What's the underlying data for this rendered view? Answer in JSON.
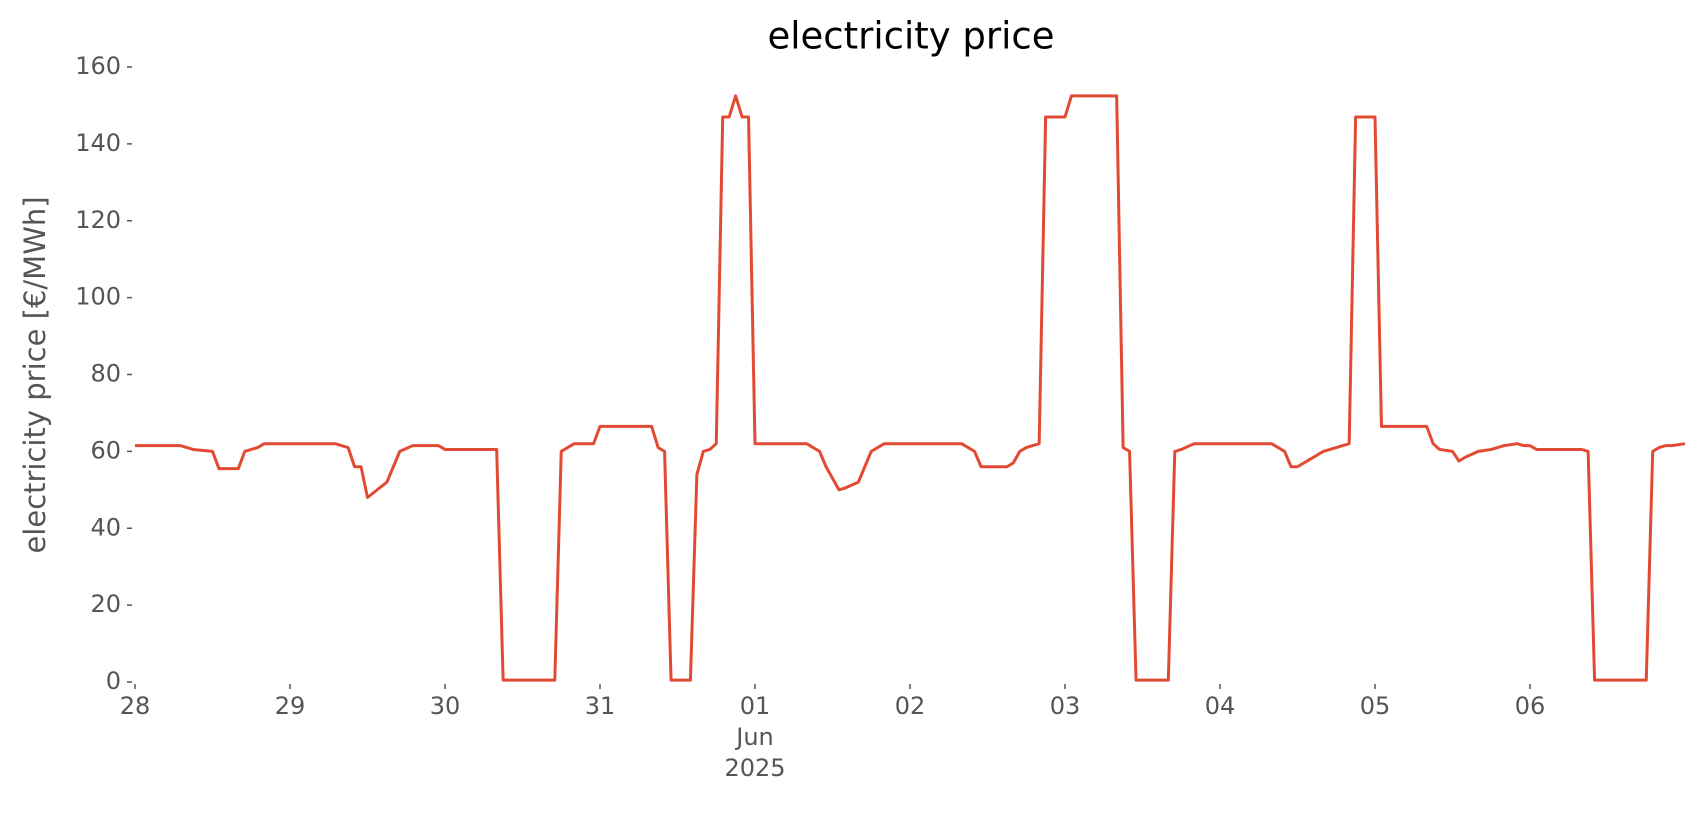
{
  "chart_data": {
    "type": "line",
    "title": "electricity price",
    "ylabel": "electricity price [€/MWh]",
    "x": [
      "2025-05-28T00:00",
      "2025-05-28T07:00",
      "2025-05-28T09:00",
      "2025-05-28T12:00",
      "2025-05-28T13:00",
      "2025-05-28T16:00",
      "2025-05-28T17:00",
      "2025-05-28T19:00",
      "2025-05-28T20:00",
      "2025-05-29T07:00",
      "2025-05-29T09:00",
      "2025-05-29T10:00",
      "2025-05-29T11:00",
      "2025-05-29T12:00",
      "2025-05-29T15:00",
      "2025-05-29T17:00",
      "2025-05-29T19:00",
      "2025-05-29T23:00",
      "2025-05-30T00:00",
      "2025-05-30T08:00",
      "2025-05-30T09:00",
      "2025-05-30T17:00",
      "2025-05-30T18:00",
      "2025-05-30T20:00",
      "2025-05-30T23:00",
      "2025-05-31T00:00",
      "2025-05-31T08:00",
      "2025-05-31T09:00",
      "2025-05-31T10:00",
      "2025-05-31T11:00",
      "2025-05-31T14:00",
      "2025-05-31T15:00",
      "2025-05-31T16:00",
      "2025-05-31T17:00",
      "2025-05-31T18:00",
      "2025-05-31T19:00",
      "2025-05-31T20:00",
      "2025-05-31T21:00",
      "2025-05-31T22:00",
      "2025-05-31T23:00",
      "2025-06-01T00:00",
      "2025-06-01T08:00",
      "2025-06-01T09:00",
      "2025-06-01T10:00",
      "2025-06-01T11:00",
      "2025-06-01T13:00",
      "2025-06-01T14:00",
      "2025-06-01T16:00",
      "2025-06-01T18:00",
      "2025-06-01T19:00",
      "2025-06-01T20:00",
      "2025-06-02T08:00",
      "2025-06-02T09:00",
      "2025-06-02T10:00",
      "2025-06-02T11:00",
      "2025-06-02T15:00",
      "2025-06-02T16:00",
      "2025-06-02T17:00",
      "2025-06-02T18:00",
      "2025-06-02T20:00",
      "2025-06-02T21:00",
      "2025-06-03T00:00",
      "2025-06-03T01:00",
      "2025-06-03T08:00",
      "2025-06-03T09:00",
      "2025-06-03T10:00",
      "2025-06-03T11:00",
      "2025-06-03T16:00",
      "2025-06-03T17:00",
      "2025-06-03T18:00",
      "2025-06-03T20:00",
      "2025-06-04T08:00",
      "2025-06-04T09:00",
      "2025-06-04T10:00",
      "2025-06-04T11:00",
      "2025-06-04T12:00",
      "2025-06-04T14:00",
      "2025-06-04T16:00",
      "2025-06-04T18:00",
      "2025-06-04T20:00",
      "2025-06-04T21:00",
      "2025-06-05T00:00",
      "2025-06-05T01:00",
      "2025-06-05T08:00",
      "2025-06-05T09:00",
      "2025-06-05T10:00",
      "2025-06-05T12:00",
      "2025-06-05T13:00",
      "2025-06-05T14:00",
      "2025-06-05T16:00",
      "2025-06-05T18:00",
      "2025-06-05T20:00",
      "2025-06-05T22:00",
      "2025-06-05T23:00",
      "2025-06-06T00:00",
      "2025-06-06T01:00",
      "2025-06-06T08:00",
      "2025-06-06T09:00",
      "2025-06-06T10:00",
      "2025-06-06T18:00",
      "2025-06-06T19:00",
      "2025-06-06T20:00",
      "2025-06-06T21:00",
      "2025-06-06T22:00",
      "2025-06-07T00:00"
    ],
    "series": [
      {
        "name": "electricity price",
        "color": "#e24a33",
        "values": [
          61.5,
          61.5,
          60.5,
          60,
          55.5,
          55.5,
          60,
          61,
          62,
          62,
          61,
          56,
          56,
          48,
          52,
          60,
          61.5,
          61.5,
          60.5,
          60.5,
          0.5,
          0.5,
          60,
          62,
          62,
          66.5,
          66.5,
          61,
          60,
          0.5,
          0.5,
          54,
          60,
          60.5,
          62,
          147,
          147,
          152.5,
          147,
          147,
          62,
          62,
          61,
          60,
          56,
          50,
          50.5,
          52,
          60,
          61,
          62,
          62,
          61,
          60,
          56,
          56,
          57,
          60,
          61,
          62,
          147,
          147,
          152.5,
          152.5,
          61,
          60,
          0.5,
          0.5,
          60,
          60.5,
          62,
          62,
          61,
          60,
          56,
          56,
          58,
          60,
          61,
          62,
          147,
          147,
          66.5,
          66.5,
          62,
          60.5,
          60,
          57.5,
          58.5,
          60,
          60.5,
          61.5,
          62,
          61.5,
          61.5,
          60.5,
          60.5,
          60,
          0.5,
          0.5,
          60,
          61,
          61.5,
          61.5,
          62
        ]
      }
    ],
    "xlim": [
      "2025-05-28T00:00",
      "2025-06-07T00:00"
    ],
    "xticks": [
      {
        "value": "2025-05-28T00:00",
        "label": "28"
      },
      {
        "value": "2025-05-29T00:00",
        "label": "29"
      },
      {
        "value": "2025-05-30T00:00",
        "label": "30"
      },
      {
        "value": "2025-05-31T00:00",
        "label": "31"
      },
      {
        "value": "2025-06-01T00:00",
        "label": "01\nJun\n2025"
      },
      {
        "value": "2025-06-02T00:00",
        "label": "02"
      },
      {
        "value": "2025-06-03T00:00",
        "label": "03"
      },
      {
        "value": "2025-06-04T00:00",
        "label": "04"
      },
      {
        "value": "2025-06-05T00:00",
        "label": "05"
      },
      {
        "value": "2025-06-06T00:00",
        "label": "06"
      }
    ],
    "ylim": [
      0,
      160
    ],
    "yticks": [
      0,
      20,
      40,
      60,
      80,
      100,
      120,
      140,
      160
    ],
    "grid": false
  }
}
